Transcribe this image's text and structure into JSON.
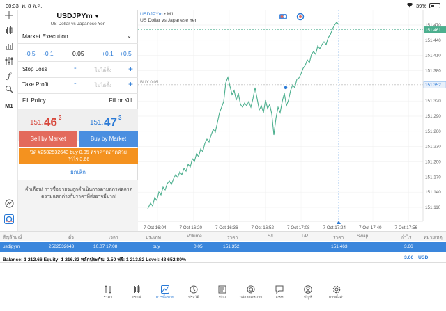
{
  "status_bar": {
    "time": "00:33",
    "date": "พ. 8 ต.ค.",
    "battery": "39%"
  },
  "order": {
    "symbol": "USDJPYm",
    "symbol_desc": "US Dollar vs Japanese Yen",
    "execution": "Market Execution",
    "volume_buttons": {
      "minus_big": "-0.5",
      "minus_small": "-0.1",
      "plus_small": "+0.1",
      "plus_big": "+0.5"
    },
    "volume": "0.05",
    "stop_loss_label": "Stop Loss",
    "take_profit_label": "Take Profit",
    "not_set_placeholder": "ไม่ได้ตั้ง",
    "minus": "-",
    "plus": "+",
    "fill_policy_label": "Fill Policy",
    "fill_policy_value": "Fill or Kill",
    "sell_price": {
      "main": "151.",
      "big": "46",
      "sup": "3"
    },
    "buy_price": {
      "main": "151.",
      "big": "47",
      "sup": "3"
    },
    "sell_button": "Sell by Market",
    "buy_button": "Buy by Market",
    "close_button_line1": "ปิด #2582532643 buy 0.05 ที่ราคาตลาดด้วย",
    "close_button_line2": "กำไร 3.66",
    "cancel_button": "ยกเลิก",
    "warning": "คำเตือน! การซื้อขายจะถูกดำเนินการตามสภาพตลาด ความแตกต่างกับราคาที่ส่งอาจมีมาก!"
  },
  "toolbar": {
    "indicator_label": "M1"
  },
  "chart": {
    "symbol": "USDJPYm",
    "timeframe": "M1",
    "description": "US Dollar vs Japanese Yen",
    "buy_line_label": "BUY 0.05",
    "buy_price": 151.352,
    "current_price": 151.461,
    "current_price_label": "151.461",
    "buy_price_label": "151.352",
    "price_labels": [
      "151.470",
      "151.440",
      "151.410",
      "151.380",
      "151.320",
      "151.290",
      "151.260",
      "151.230",
      "151.200",
      "151.170",
      "151.140",
      "151.110"
    ],
    "time_labels": [
      "7 Oct 16:04",
      "7 Oct 16:20",
      "7 Oct 16:36",
      "7 Oct 16:52",
      "7 Oct 17:08",
      "7 Oct 17:24",
      "7 Oct 17:40",
      "7 Oct 17:56"
    ],
    "colors": {
      "line": "#4caf8e",
      "buy_line": "#9a9a9a",
      "current": "#4caf8e",
      "buy_label_bg": "#e8f0fb",
      "accent": "#2a7ad6"
    }
  },
  "table": {
    "headers": [
      "สัญลักษณ์",
      "ตั๋ว",
      "เวลา",
      "ประเภท",
      "Volume",
      "ราคา",
      "S/L",
      "T/P",
      "ราคา",
      "Swap",
      "กำไร",
      "หมายเหตุ"
    ],
    "row": {
      "symbol": "usdjpym",
      "ticket": "2582532643",
      "time": "10.07 17:08",
      "type": "buy",
      "volume": "0.05",
      "open_price": "151.352",
      "current_price": "151.463",
      "profit": "3.66"
    }
  },
  "balance": {
    "text": "Balance: 1 212.66 Equity: 1 216.32 หลักประกัน: 2.50 ฟรี: 1 213.82 Level: 48 652.80%",
    "profit": "3.66",
    "currency": "USD"
  },
  "tabs": [
    {
      "label": "ราคา",
      "icon": "quotes-icon"
    },
    {
      "label": "กราฟ",
      "icon": "charts-icon"
    },
    {
      "label": "การซื้อขาย",
      "icon": "trade-icon",
      "active": true
    },
    {
      "label": "ประวัติ",
      "icon": "history-icon"
    },
    {
      "label": "ข่าว",
      "icon": "news-icon"
    },
    {
      "label": "กล่องจดหมาย",
      "icon": "mailbox-icon"
    },
    {
      "label": "แชท",
      "icon": "chat-icon"
    },
    {
      "label": "บัญชี",
      "icon": "account-icon"
    },
    {
      "label": "การตั้งค่า",
      "icon": "settings-icon"
    }
  ]
}
